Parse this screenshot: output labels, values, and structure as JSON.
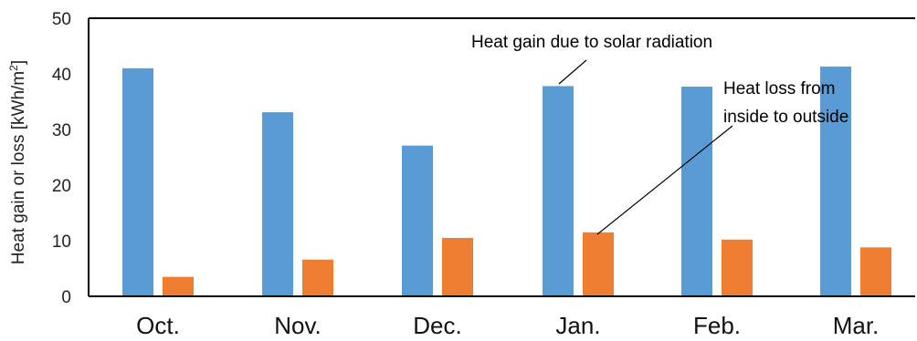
{
  "chart_data": {
    "type": "bar",
    "categories": [
      "Oct.",
      "Nov.",
      "Dec.",
      "Jan.",
      "Feb.",
      "Mar."
    ],
    "series": [
      {
        "values": [
          41.0,
          33.1,
          27.1,
          37.8,
          37.7,
          41.3
        ],
        "color": "#5b9bd5"
      },
      {
        "values": [
          3.5,
          6.6,
          10.5,
          11.5,
          10.2,
          8.8
        ],
        "color": "#ed7d31"
      }
    ],
    "ylabel_main": "Heat gain or loss [kWh/m",
    "ylabel_sup": "2",
    "ylabel_end": "]",
    "ylim": [
      0,
      50
    ],
    "yticks": [
      "0",
      "10",
      "20",
      "30",
      "40",
      "50"
    ],
    "grid": false,
    "annotations": {
      "solar": "Heat gain due to solar radiation",
      "loss_line1": "Heat loss from",
      "loss_line2": "inside to outside"
    }
  }
}
